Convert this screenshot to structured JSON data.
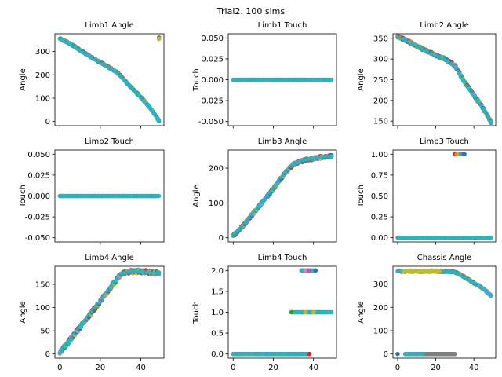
{
  "figure": {
    "title": "Trial2. 100 sims"
  },
  "series_colors": [
    "#1f77b4",
    "#ff7f0e",
    "#2ca02c",
    "#d62728",
    "#9467bd",
    "#8c564b",
    "#e377c2",
    "#7f7f7f",
    "#bcbd22",
    "#17becf"
  ],
  "chart_data": [
    {
      "type": "scatter",
      "title": "Limb1 Angle",
      "xlabel": "",
      "ylabel": "Angle",
      "xlim": [
        -2.45,
        51.45
      ],
      "ylim": [
        -17.9,
        375.9
      ],
      "xticks": [
        0,
        20,
        40
      ],
      "xticklabels_visible": false,
      "yticks": [
        0,
        100,
        200,
        300
      ],
      "segments": [
        [
          0,
          355
        ],
        [
          5,
          334
        ],
        [
          10,
          306
        ],
        [
          15,
          278
        ],
        [
          20,
          254
        ],
        [
          25,
          228
        ],
        [
          28,
          213
        ],
        [
          30,
          196
        ],
        [
          35,
          148
        ],
        [
          40,
          105
        ],
        [
          45,
          55
        ],
        [
          49,
          3
        ]
      ],
      "spread": 3,
      "outliers": [
        {
          "x": 49,
          "y": 360,
          "color": "#9467bd"
        },
        {
          "x": 49,
          "y": 354,
          "color": "#bcbd22"
        }
      ]
    },
    {
      "type": "scatter",
      "title": "Limb1 Touch",
      "xlabel": "",
      "ylabel": "Touch",
      "xlim": [
        -2.45,
        51.45
      ],
      "ylim": [
        -0.055,
        0.055
      ],
      "xticks": [
        0,
        20,
        40
      ],
      "xticklabels_visible": false,
      "yticks": [
        -0.05,
        -0.025,
        0.0,
        0.025,
        0.05
      ],
      "ytickformat": "3dp",
      "segments": [
        [
          0,
          0
        ],
        [
          49,
          0
        ]
      ],
      "spread": 0,
      "outliers": []
    },
    {
      "type": "scatter",
      "title": "Limb2 Angle",
      "xlabel": "",
      "ylabel": "Angle",
      "xlim": [
        -2.45,
        51.45
      ],
      "ylim": [
        139,
        361
      ],
      "xticks": [
        0,
        20,
        40
      ],
      "xticklabels_visible": false,
      "yticks": [
        150,
        200,
        250,
        300,
        350
      ],
      "segments": [
        [
          0,
          355
        ],
        [
          5,
          344
        ],
        [
          10,
          332
        ],
        [
          15,
          320
        ],
        [
          20,
          309
        ],
        [
          25,
          300
        ],
        [
          30,
          285
        ],
        [
          35,
          245
        ],
        [
          40,
          213
        ],
        [
          45,
          180
        ],
        [
          49,
          148
        ]
      ],
      "spread": 3,
      "outliers": []
    },
    {
      "type": "scatter",
      "title": "Limb2 Touch",
      "xlabel": "",
      "ylabel": "Touch",
      "xlim": [
        -2.45,
        51.45
      ],
      "ylim": [
        -0.055,
        0.055
      ],
      "xticks": [
        0,
        20,
        40
      ],
      "xticklabels_visible": false,
      "yticks": [
        -0.05,
        -0.025,
        0.0,
        0.025,
        0.05
      ],
      "ytickformat": "3dp",
      "segments": [
        [
          0,
          0
        ],
        [
          49,
          0
        ]
      ],
      "spread": 0,
      "outliers": []
    },
    {
      "type": "scatter",
      "title": "Limb3 Angle",
      "xlabel": "",
      "ylabel": "Angle",
      "xlim": [
        -2.45,
        51.45
      ],
      "ylim": [
        -12,
        252
      ],
      "xticks": [
        0,
        20,
        40
      ],
      "xticklabels_visible": false,
      "yticks": [
        0,
        100,
        200
      ],
      "segments": [
        [
          0,
          5
        ],
        [
          5,
          35
        ],
        [
          10,
          70
        ],
        [
          15,
          105
        ],
        [
          20,
          140
        ],
        [
          25,
          180
        ],
        [
          30,
          212
        ],
        [
          35,
          222
        ],
        [
          40,
          228
        ],
        [
          45,
          232
        ],
        [
          49,
          234
        ]
      ],
      "spread": 4,
      "outliers": []
    },
    {
      "type": "scatter",
      "title": "Limb3 Touch",
      "xlabel": "",
      "ylabel": "Touch",
      "xlim": [
        -2.45,
        51.45
      ],
      "ylim": [
        -0.05,
        1.05
      ],
      "xticks": [
        0,
        20,
        40
      ],
      "xticklabels_visible": false,
      "yticks": [
        0.0,
        0.25,
        0.5,
        0.75,
        1.0
      ],
      "ytickformat": "2dp",
      "segments": [
        [
          0,
          0
        ],
        [
          49,
          0
        ]
      ],
      "spread": 0,
      "outliers": [
        {
          "x": 30,
          "y": 1,
          "color": "#d62728"
        },
        {
          "x": 31,
          "y": 1,
          "color": "#ff7f0e"
        },
        {
          "x": 32,
          "y": 1,
          "color": "#bcbd22"
        },
        {
          "x": 33,
          "y": 1,
          "color": "#17becf"
        },
        {
          "x": 34,
          "y": 1,
          "color": "#9467bd"
        },
        {
          "x": 35,
          "y": 1,
          "color": "#1f77b4"
        }
      ]
    },
    {
      "type": "scatter",
      "title": "Limb4 Angle",
      "xlabel": "",
      "ylabel": "Angle",
      "xlim": [
        -2.45,
        51.45
      ],
      "ylim": [
        -9,
        189
      ],
      "xticks": [
        0,
        20,
        40
      ],
      "xticklabels_visible": true,
      "yticks": [
        0,
        50,
        100,
        150
      ],
      "segments": [
        [
          0,
          3
        ],
        [
          5,
          30
        ],
        [
          10,
          58
        ],
        [
          15,
          86
        ],
        [
          20,
          113
        ],
        [
          25,
          143
        ],
        [
          30,
          172
        ],
        [
          35,
          178
        ],
        [
          40,
          178
        ],
        [
          45,
          176
        ],
        [
          49,
          174
        ]
      ],
      "spread": 4,
      "outliers": []
    },
    {
      "type": "scatter",
      "title": "Limb4 Touch",
      "xlabel": "",
      "ylabel": "Touch",
      "xlim": [
        -2.45,
        51.45
      ],
      "ylim": [
        -0.1,
        2.1
      ],
      "xticks": [
        0,
        20,
        40
      ],
      "xticklabels_visible": true,
      "yticks": [
        0.0,
        0.5,
        1.0,
        1.5,
        2.0
      ],
      "ytickformat": "1dp",
      "segments": [
        [
          0,
          0
        ],
        [
          38,
          0
        ]
      ],
      "spread": 0,
      "extra_segments": [
        [
          [
            29,
            1
          ],
          [
            49,
            1
          ]
        ],
        [
          [
            34,
            2
          ],
          [
            41,
            2
          ]
        ]
      ],
      "outliers": [
        {
          "x": 29,
          "y": 1,
          "color": "#2ca02c"
        },
        {
          "x": 36,
          "y": 1,
          "color": "#bcbd22"
        },
        {
          "x": 38,
          "y": 0,
          "color": "#d62728"
        },
        {
          "x": 36,
          "y": 2,
          "color": "#e377c2"
        },
        {
          "x": 38,
          "y": 2,
          "color": "#9467bd"
        },
        {
          "x": 41,
          "y": 2,
          "color": "#1f77b4"
        },
        {
          "x": 40,
          "y": 1,
          "color": "#bcbd22"
        }
      ]
    },
    {
      "type": "scatter",
      "title": "Chassis Angle",
      "xlabel": "",
      "ylabel": "Angle",
      "xlim": [
        -2.45,
        51.45
      ],
      "ylim": [
        -17.9,
        375.9
      ],
      "xticks": [
        0,
        20,
        40
      ],
      "xticklabels_visible": true,
      "yticks": [
        0,
        100,
        200,
        300
      ],
      "segments": [
        [
          0,
          355
        ],
        [
          10,
          355
        ],
        [
          20,
          355
        ],
        [
          30,
          352
        ],
        [
          35,
          330
        ],
        [
          40,
          305
        ],
        [
          45,
          280
        ],
        [
          49,
          250
        ]
      ],
      "spread": 3,
      "extra_segments": [
        [
          [
            4,
            0
          ],
          [
            30,
            0
          ]
        ]
      ],
      "highlight": [
        {
          "from": 3,
          "to": 22,
          "y": 355,
          "color": "#bcbd22"
        },
        {
          "from": 15,
          "to": 30,
          "y": 0,
          "color": "#7f7f7f"
        }
      ],
      "outliers": [
        {
          "x": 0,
          "y": 0,
          "color": "#1f77b4"
        }
      ]
    }
  ]
}
